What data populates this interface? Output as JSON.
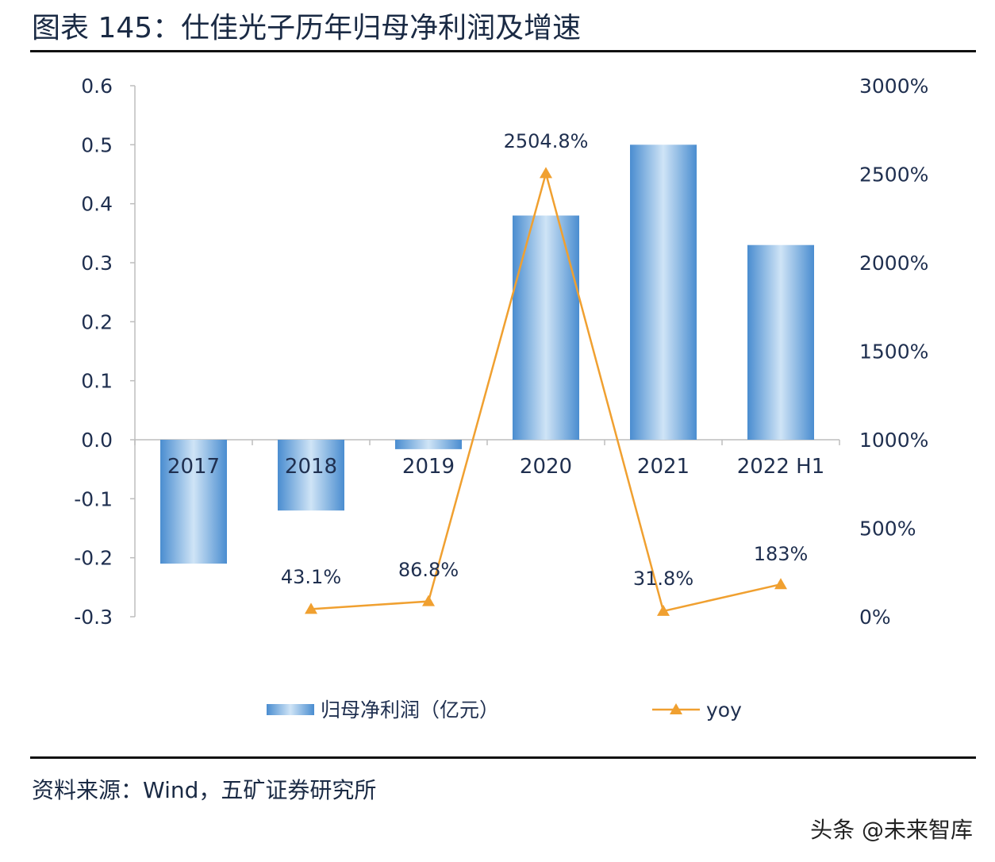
{
  "header": {
    "title": "图表 145：仕佳光子历年归母净利润及增速"
  },
  "footer": {
    "source": "资料来源：Wind，五矿证券研究所",
    "watermark": "头条 @未来智库"
  },
  "chart_data": {
    "type": "bar",
    "categories": [
      "2017",
      "2018",
      "2019",
      "2020",
      "2021",
      "2022 H1"
    ],
    "series": [
      {
        "name": "归母净利润（亿元）",
        "type": "bar",
        "axis": "left",
        "values": [
          -0.21,
          -0.12,
          -0.016,
          0.38,
          0.5,
          0.33
        ],
        "color": "#5b9bd5"
      },
      {
        "name": "yoy",
        "type": "line",
        "axis": "right",
        "values": [
          null,
          43.1,
          86.8,
          2504.8,
          31.8,
          183
        ],
        "labels": [
          "",
          "43.1%",
          "86.8%",
          "2504.8%",
          "31.8%",
          "183%"
        ],
        "color": "#f0a030"
      }
    ],
    "y_left": {
      "ylim": [
        -0.3,
        0.6
      ],
      "ticks": [
        "0.6",
        "0.5",
        "0.4",
        "0.3",
        "0.2",
        "0.1",
        "0.0",
        "-0.1",
        "-0.2",
        "-0.3"
      ]
    },
    "y_right": {
      "ylim": [
        0,
        3000
      ],
      "ticks": [
        "3000%",
        "2500%",
        "2000%",
        "1500%",
        "1000%",
        "500%",
        "0%"
      ]
    },
    "legend": {
      "position": "bottom"
    },
    "grid": false
  }
}
